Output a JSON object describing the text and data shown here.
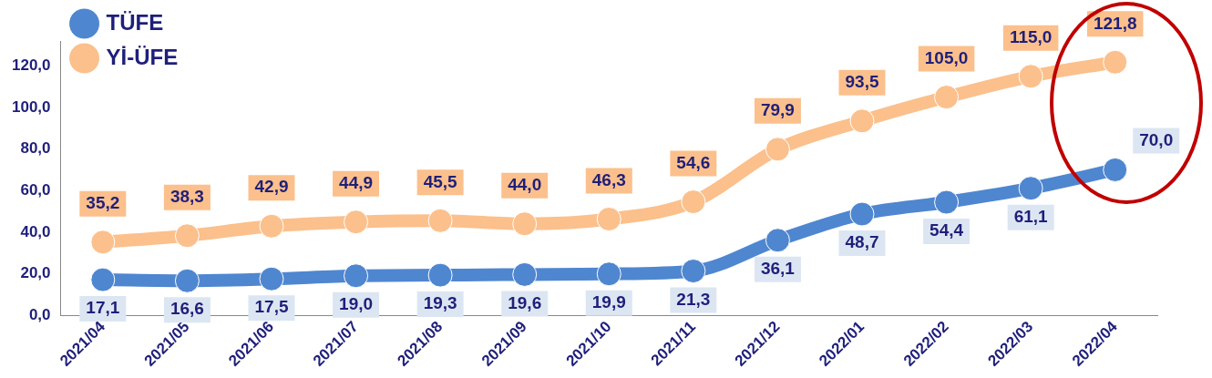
{
  "chart_data": {
    "type": "line",
    "categories": [
      "2021/04",
      "2021/05",
      "2021/06",
      "2021/07",
      "2021/08",
      "2021/09",
      "2021/10",
      "2021/11",
      "2021/12",
      "2022/01",
      "2022/02",
      "2022/03",
      "2022/04"
    ],
    "series": [
      {
        "name": "TÜFE",
        "color": "#4f86d0",
        "values": [
          17.1,
          16.6,
          17.5,
          19.0,
          19.3,
          19.6,
          19.9,
          21.3,
          36.1,
          48.7,
          54.4,
          61.1,
          70.0
        ],
        "value_labels": [
          "17,1",
          "16,6",
          "17,5",
          "19,0",
          "19,3",
          "19,6",
          "19,9",
          "21,3",
          "36,1",
          "48,7",
          "54,4",
          "61,1",
          "70,0"
        ]
      },
      {
        "name": "Yİ-ÜFE",
        "color": "#fbc08c",
        "values": [
          35.2,
          38.3,
          42.9,
          44.9,
          45.5,
          44.0,
          46.3,
          54.6,
          79.9,
          93.5,
          105.0,
          115.0,
          121.8
        ],
        "value_labels": [
          "35,2",
          "38,3",
          "42,9",
          "44,9",
          "45,5",
          "44,0",
          "46,3",
          "54,6",
          "79,9",
          "93,5",
          "105,0",
          "115,0",
          "121,8"
        ]
      }
    ],
    "ylim": [
      0,
      132
    ],
    "yticks": [
      {
        "value": 0,
        "label": "0,0"
      },
      {
        "value": 20,
        "label": "20,0"
      },
      {
        "value": 40,
        "label": "40,0"
      },
      {
        "value": 60,
        "label": "60,0"
      },
      {
        "value": 80,
        "label": "80,0"
      },
      {
        "value": 100,
        "label": "100,0"
      },
      {
        "value": 120,
        "label": "120,0"
      }
    ],
    "grid": false,
    "legend": "top left",
    "marker": "circle",
    "line_style": "solid"
  }
}
